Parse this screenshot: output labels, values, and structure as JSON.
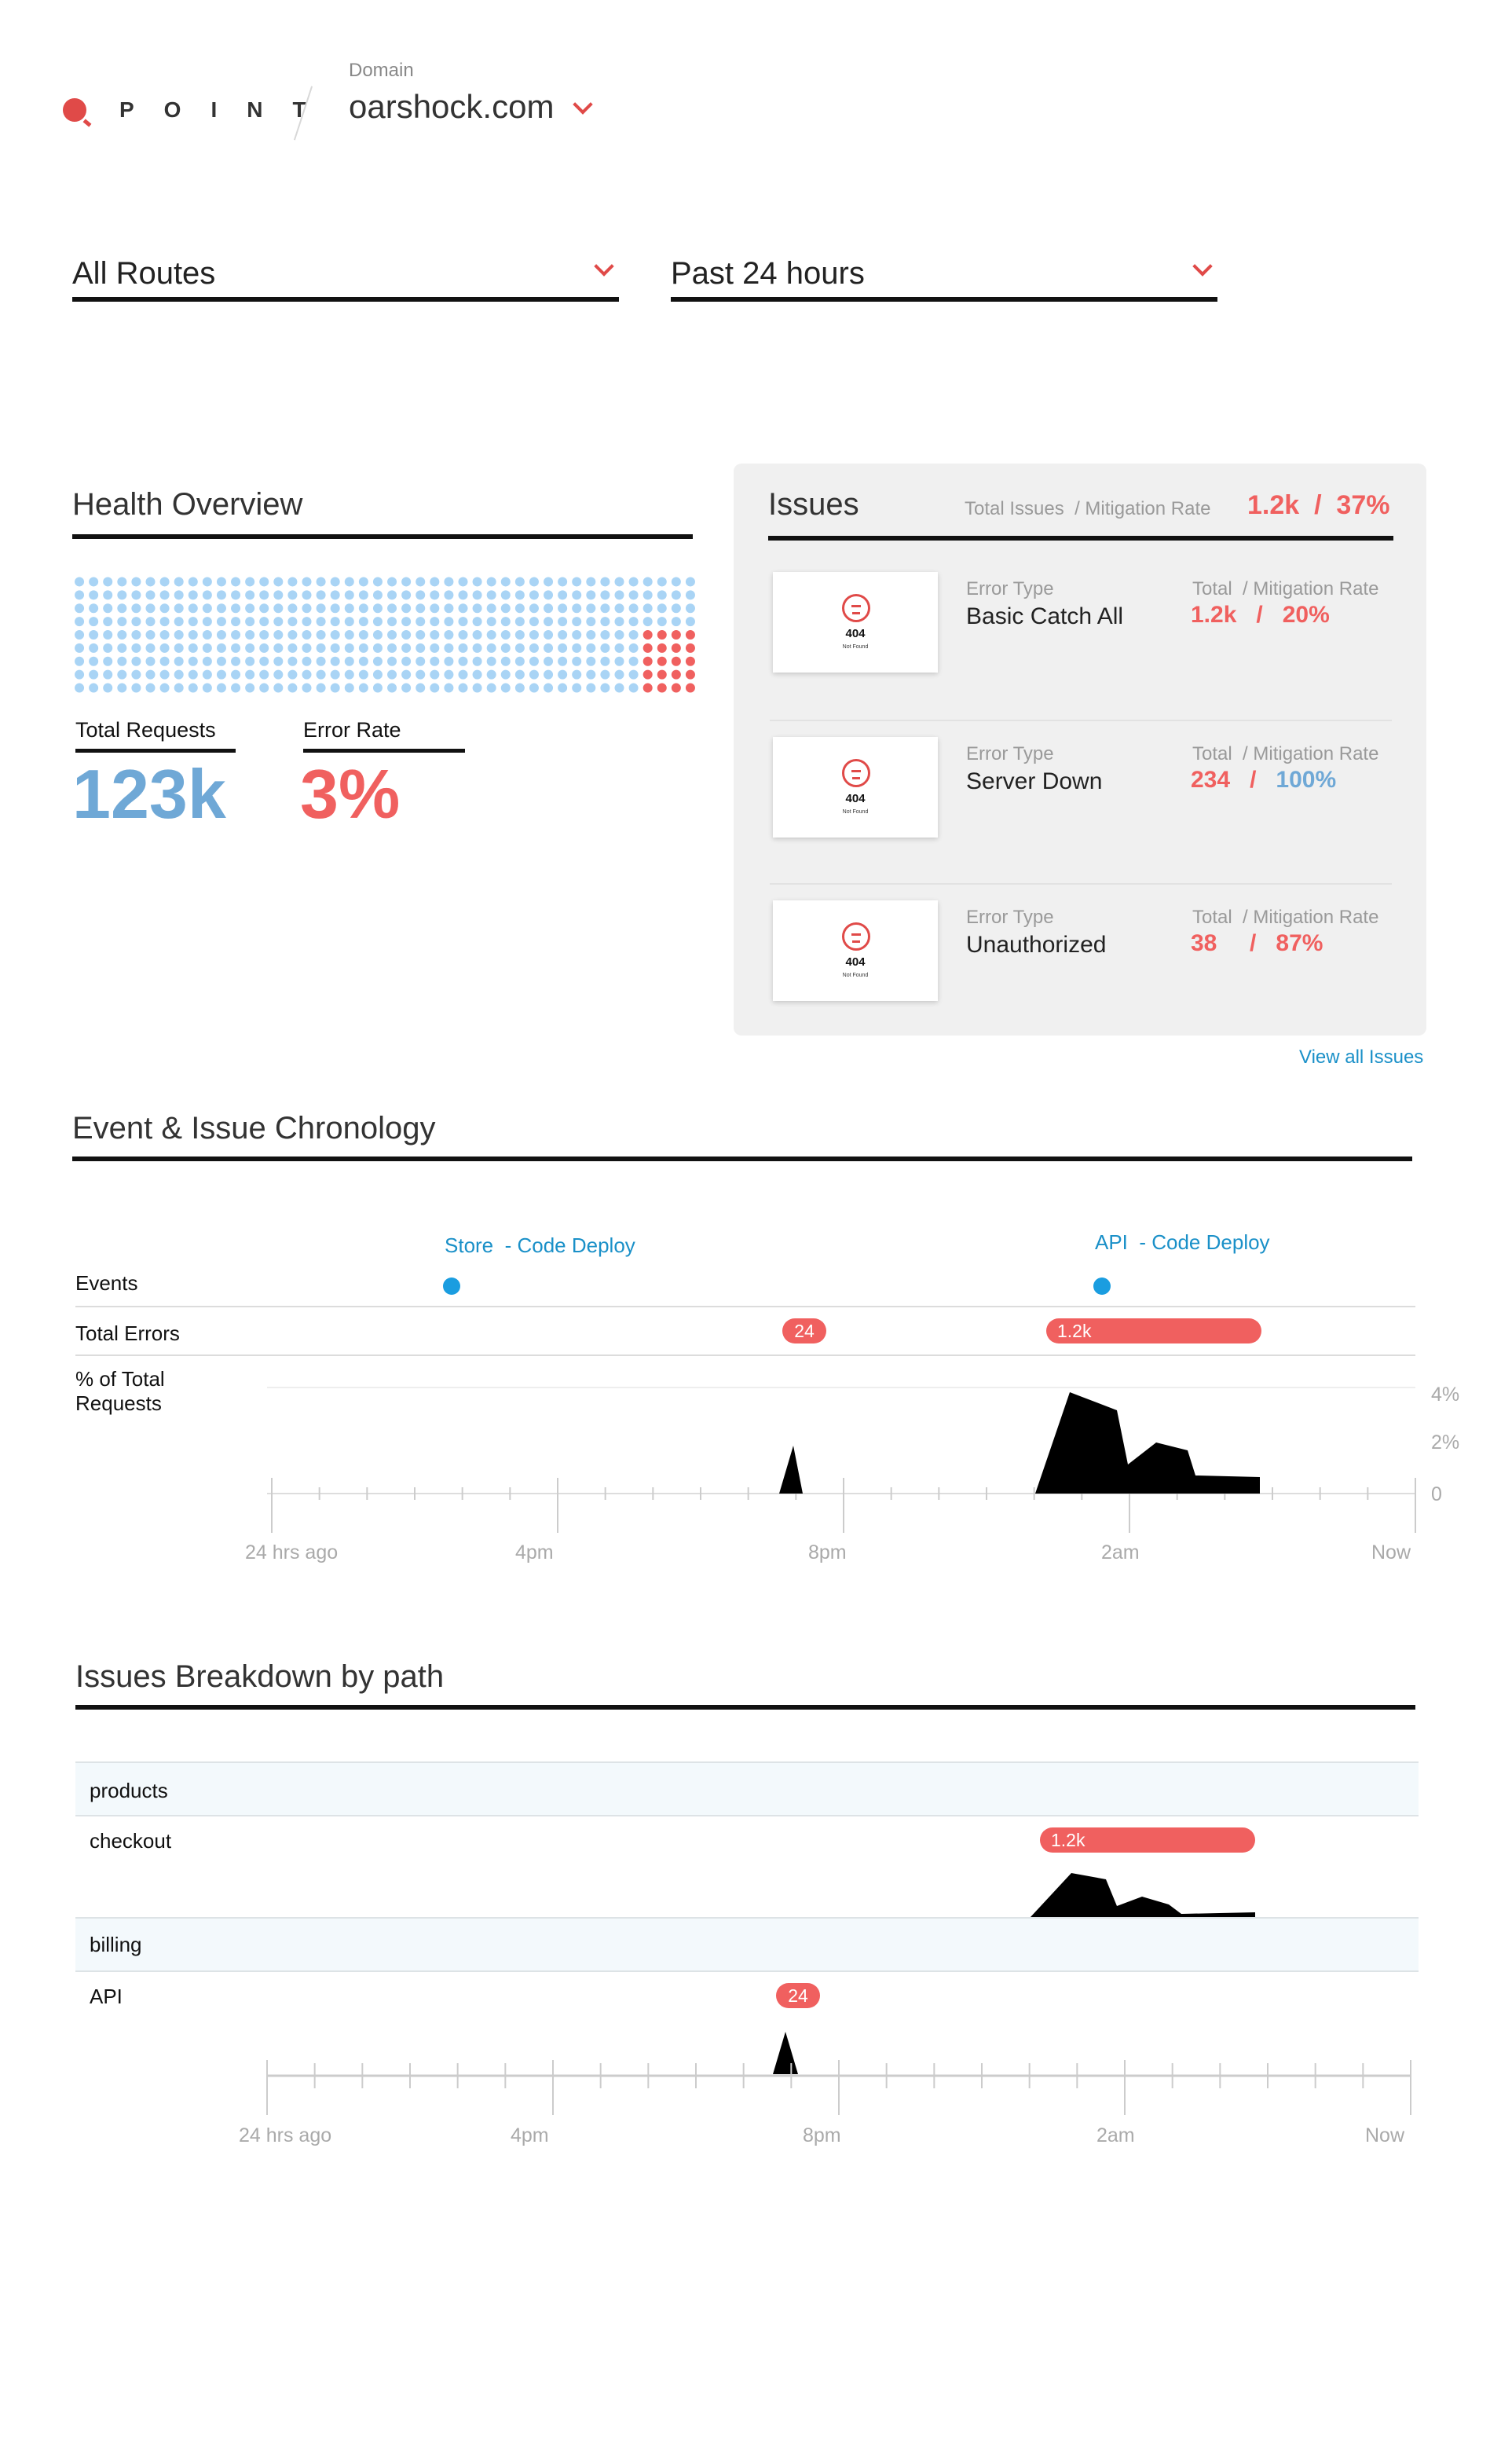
{
  "header": {
    "logo_text": "POINT",
    "domain_label": "Domain",
    "domain_value": "oarshock.com"
  },
  "filters": {
    "routes": "All Routes",
    "time_range": "Past 24 hours"
  },
  "health": {
    "title": "Health Overview",
    "total_requests_label": "Total Requests",
    "total_requests_value": "123k",
    "error_rate_label": "Error Rate",
    "error_rate_value": "3%",
    "dot_grid": {
      "rows": 9,
      "cols": 44,
      "error_cols": 4,
      "error_rows_in_last_col_block": 5
    }
  },
  "issues": {
    "title": "Issues",
    "totals_label": "Total Issues  / Mitigation Rate",
    "totals_value": "1.2k  /  37%",
    "thumb_code": "404",
    "thumb_caption": "Not Found",
    "error_type_label": "Error Type",
    "total_label": "Total  / Mitigation Rate",
    "items": [
      {
        "type": "Basic Catch All",
        "total": "1.2k",
        "rate": "20%"
      },
      {
        "type": "Server Down",
        "total": "234",
        "rate": "100%"
      },
      {
        "type": "Unauthorized",
        "total": "38",
        "rate": "87%"
      }
    ],
    "view_all": "View all Issues"
  },
  "chronology": {
    "title": "Event & Issue Chronology",
    "rows": {
      "events": "Events",
      "total_errors": "Total Errors",
      "pct_total_line1": "% of Total",
      "pct_total_line2": "Requests"
    },
    "events": [
      {
        "label": "Store  - Code Deploy"
      },
      {
        "label": "API  - Code Deploy"
      }
    ],
    "error_pills": [
      "24",
      "1.2k"
    ],
    "y_ticks": [
      "4%",
      "2%",
      "0"
    ],
    "x_ticks": [
      "24 hrs ago",
      "4pm",
      "8pm",
      "2am",
      "Now"
    ]
  },
  "breakdown": {
    "title": "Issues Breakdown by path",
    "paths": [
      "products",
      "checkout",
      "billing",
      "API"
    ],
    "pills": [
      "1.2k",
      "24"
    ],
    "x_ticks": [
      "24 hrs ago",
      "4pm",
      "8pm",
      "2am",
      "Now"
    ]
  },
  "colors": {
    "accent_red": "#f0605f",
    "accent_blue": "#6fa8d6",
    "link_blue": "#1a90c8",
    "dot_blue": "#a9d4f5"
  }
}
